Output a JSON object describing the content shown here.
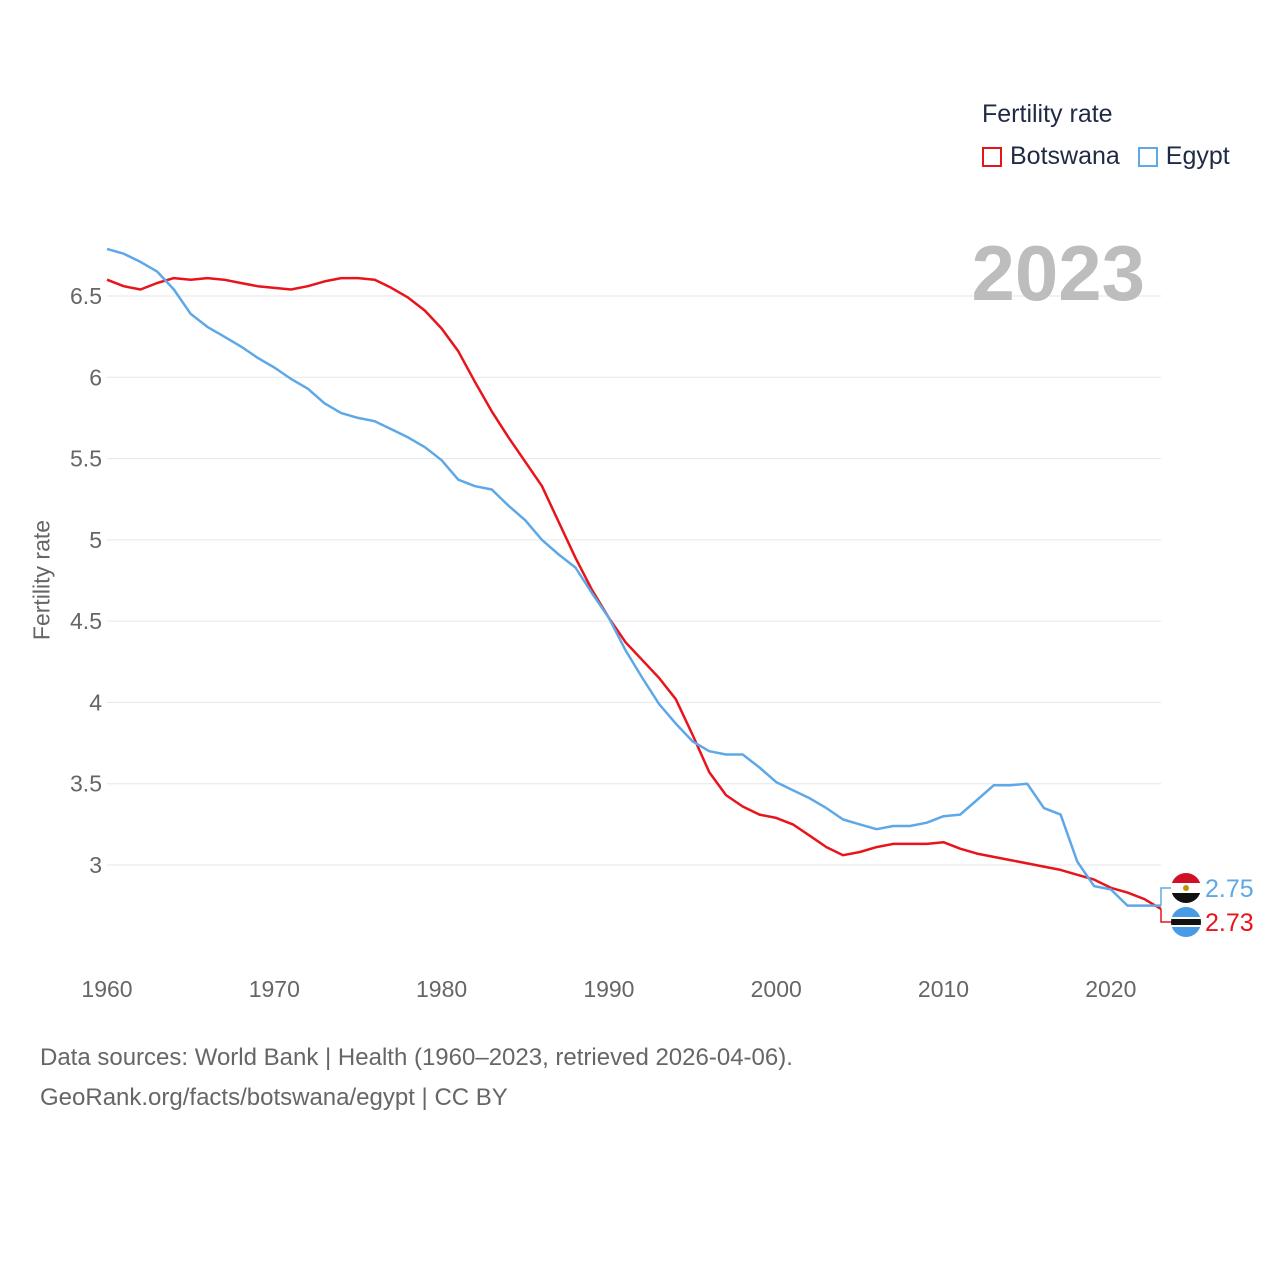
{
  "legend": {
    "title": "Fertility rate",
    "items": [
      {
        "label": "Botswana",
        "color": "#e8141c"
      },
      {
        "label": "Egypt",
        "color": "#5ea8e8"
      }
    ]
  },
  "year_label": "2023",
  "footer": {
    "line1": "Data sources: World Bank | Health (1960–2023, retrieved 2026-04-06).",
    "line2": "GeoRank.org/facts/botswana/egypt | CC BY"
  },
  "chart_data": {
    "type": "line",
    "title": "",
    "xlabel": "",
    "ylabel": "Fertility rate",
    "xlim": [
      1960,
      2023
    ],
    "ylim": [
      2.45,
      6.85
    ],
    "x_ticks": [
      "1960",
      "1970",
      "1980",
      "1990",
      "2000",
      "2010",
      "2020"
    ],
    "y_ticks": [
      "3",
      "3.5",
      "4",
      "4.5",
      "5",
      "5.5",
      "6",
      "6.5"
    ],
    "x": [
      1960,
      1961,
      1962,
      1963,
      1964,
      1965,
      1966,
      1967,
      1968,
      1969,
      1970,
      1971,
      1972,
      1973,
      1974,
      1975,
      1976,
      1977,
      1978,
      1979,
      1980,
      1981,
      1982,
      1983,
      1984,
      1985,
      1986,
      1987,
      1988,
      1989,
      1990,
      1991,
      1992,
      1993,
      1994,
      1995,
      1996,
      1997,
      1998,
      1999,
      2000,
      2001,
      2002,
      2003,
      2004,
      2005,
      2006,
      2007,
      2008,
      2009,
      2010,
      2011,
      2012,
      2013,
      2014,
      2015,
      2016,
      2017,
      2018,
      2019,
      2020,
      2021,
      2022,
      2023
    ],
    "series": [
      {
        "name": "Botswana",
        "color": "#e8141c",
        "end_label": "2.73",
        "values": [
          6.6,
          6.56,
          6.54,
          6.58,
          6.61,
          6.6,
          6.61,
          6.6,
          6.58,
          6.56,
          6.55,
          6.54,
          6.56,
          6.59,
          6.61,
          6.61,
          6.6,
          6.55,
          6.49,
          6.41,
          6.3,
          6.16,
          5.97,
          5.79,
          5.63,
          5.48,
          5.33,
          5.11,
          4.89,
          4.69,
          4.52,
          4.37,
          4.26,
          4.15,
          4.02,
          3.8,
          3.57,
          3.43,
          3.36,
          3.31,
          3.29,
          3.25,
          3.18,
          3.11,
          3.06,
          3.08,
          3.11,
          3.13,
          3.13,
          3.13,
          3.14,
          3.1,
          3.07,
          3.05,
          3.03,
          3.01,
          2.99,
          2.97,
          2.94,
          2.91,
          2.86,
          2.83,
          2.79,
          2.73
        ]
      },
      {
        "name": "Egypt",
        "color": "#5ea8e8",
        "end_label": "2.75",
        "values": [
          6.79,
          6.76,
          6.71,
          6.65,
          6.54,
          6.39,
          6.31,
          6.25,
          6.19,
          6.12,
          6.06,
          5.99,
          5.93,
          5.84,
          5.78,
          5.75,
          5.73,
          5.68,
          5.63,
          5.57,
          5.49,
          5.37,
          5.33,
          5.31,
          5.21,
          5.12,
          5.0,
          4.91,
          4.83,
          4.67,
          4.52,
          4.32,
          4.15,
          3.99,
          3.87,
          3.76,
          3.7,
          3.68,
          3.68,
          3.6,
          3.51,
          3.46,
          3.41,
          3.35,
          3.28,
          3.25,
          3.22,
          3.24,
          3.24,
          3.26,
          3.3,
          3.31,
          3.4,
          3.49,
          3.49,
          3.5,
          3.35,
          3.31,
          3.02,
          2.87,
          2.85,
          2.75,
          2.75,
          2.75
        ]
      }
    ]
  }
}
